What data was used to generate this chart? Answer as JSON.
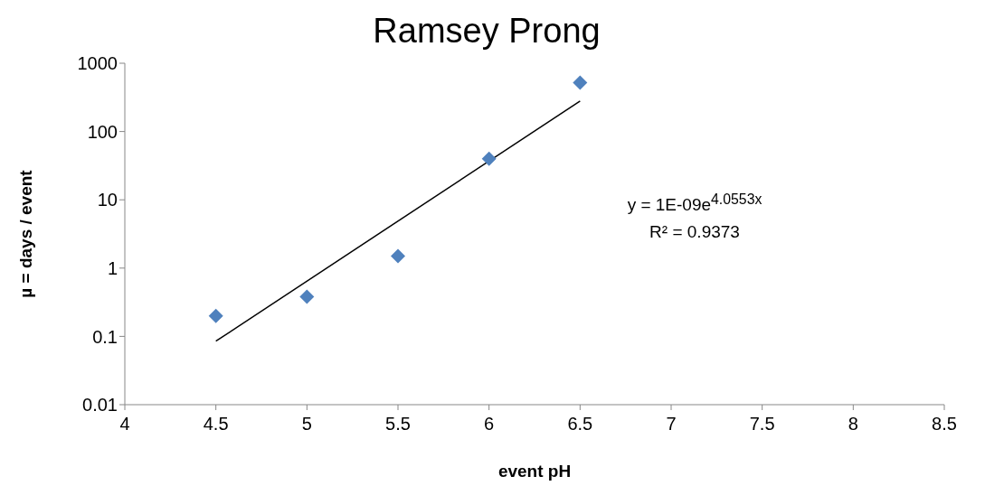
{
  "chart_data": {
    "type": "scatter",
    "title": "Ramsey Prong",
    "xlabel": "event pH",
    "ylabel": "µ = days  / event",
    "log": "y",
    "xlim": [
      4,
      8.5
    ],
    "xticks": [
      4,
      4.5,
      5,
      5.5,
      6,
      6.5,
      7,
      7.5,
      8,
      8.5
    ],
    "ylim": [
      0.01,
      1000
    ],
    "yticks": [
      0.01,
      0.1,
      1,
      10,
      100,
      1000
    ],
    "grid": false,
    "marker": "diamond",
    "series": [
      {
        "color": "#4f81bd",
        "x": [
          4.5,
          5,
          5.5,
          6,
          6.5
        ],
        "values": [
          0.2,
          0.38,
          1.5,
          40,
          520
        ]
      },
      {
        "type": "line",
        "color": "#000000",
        "x": [
          4.5,
          6.5
        ],
        "values": [
          0.085,
          280
        ],
        "marker": "none",
        "line_style": "solid"
      }
    ],
    "annotations": [
      "y = 1E-09e$^{4.0553x}$",
      "R² = 0.9373"
    ]
  }
}
